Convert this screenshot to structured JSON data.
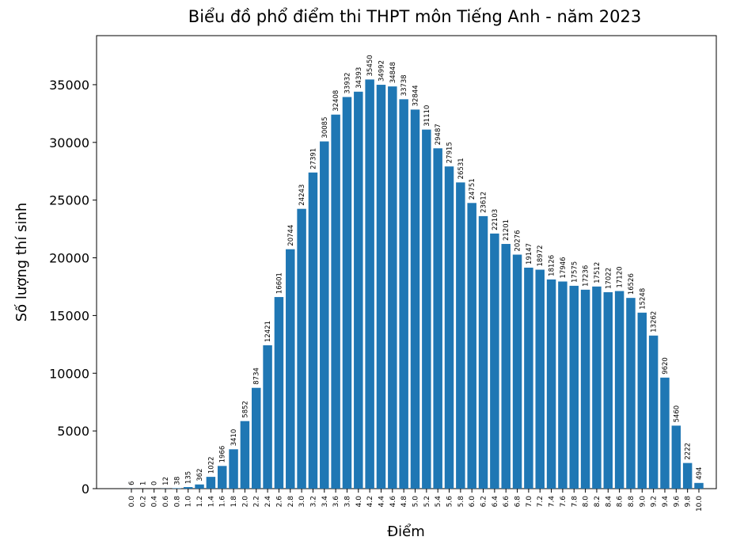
{
  "chart_data": {
    "type": "bar",
    "title": "Biểu đồ phổ điểm thi THPT môn Tiếng Anh - năm 2023",
    "x_label": "Điểm",
    "y_label": "Số lượng thí sinh",
    "categories": [
      "0.0",
      "0.2",
      "0.4",
      "0.6",
      "0.8",
      "1.0",
      "1.2",
      "1.4",
      "1.6",
      "1.8",
      "2.0",
      "2.2",
      "2.4",
      "2.6",
      "2.8",
      "3.0",
      "3.2",
      "3.4",
      "3.6",
      "3.8",
      "4.0",
      "4.2",
      "4.4",
      "4.6",
      "4.8",
      "5.0",
      "5.2",
      "5.4",
      "5.6",
      "5.8",
      "6.0",
      "6.2",
      "6.4",
      "6.6",
      "6.8",
      "7.0",
      "7.2",
      "7.4",
      "7.6",
      "7.8",
      "8.0",
      "8.2",
      "8.4",
      "8.6",
      "8.8",
      "9.0",
      "9.2",
      "9.4",
      "9.6",
      "9.8",
      "10.0"
    ],
    "values": [
      6,
      1,
      0,
      12,
      38,
      135,
      362,
      1022,
      1966,
      3410,
      5852,
      8734,
      12421,
      16601,
      20744,
      24243,
      27391,
      30085,
      32408,
      33932,
      34393,
      35450,
      34992,
      34848,
      33738,
      32844,
      31110,
      29487,
      27915,
      26531,
      24751,
      23612,
      22103,
      21201,
      20276,
      19147,
      18972,
      18126,
      17946,
      17575,
      17236,
      17512,
      17022,
      17120,
      16526,
      15248,
      13262,
      9620,
      5460,
      2222,
      494
    ],
    "color": "#1f77b4",
    "ylim": [
      0,
      39250
    ],
    "yticks": [
      0,
      5000,
      10000,
      15000,
      20000,
      25000,
      30000,
      35000
    ],
    "grid": false
  }
}
